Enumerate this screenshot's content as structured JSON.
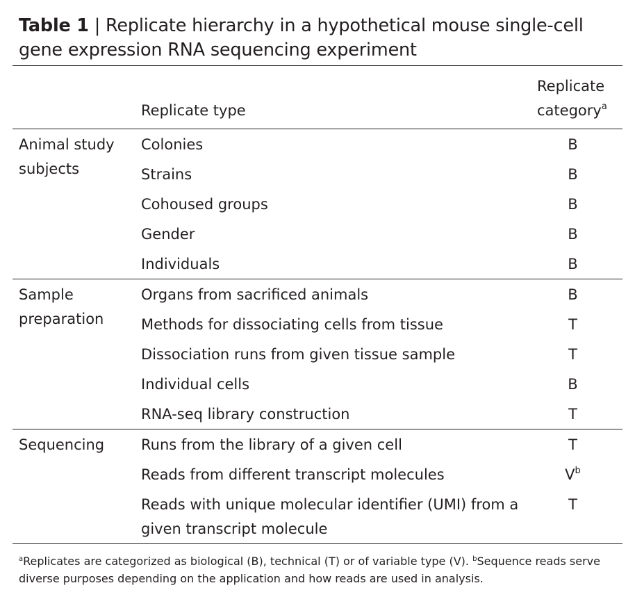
{
  "table": {
    "label": "Table 1",
    "separator": "|",
    "caption": "Replicate hierarchy in a hypothetical mouse single-cell gene expression RNA sequencing experiment",
    "headers": {
      "group": "",
      "type": "Replicate type",
      "category_line1": "Replicate",
      "category_line2": "category",
      "category_note": "a"
    },
    "groups": [
      {
        "name": "Animal study subjects",
        "rows": [
          {
            "type": "Colonies",
            "category": "B",
            "note": ""
          },
          {
            "type": "Strains",
            "category": "B",
            "note": ""
          },
          {
            "type": "Cohoused groups",
            "category": "B",
            "note": ""
          },
          {
            "type": "Gender",
            "category": "B",
            "note": ""
          },
          {
            "type": "Individuals",
            "category": "B",
            "note": ""
          }
        ]
      },
      {
        "name": "Sample preparation",
        "rows": [
          {
            "type": "Organs from sacrificed animals",
            "category": "B",
            "note": ""
          },
          {
            "type": "Methods for dissociating cells from tissue",
            "category": "T",
            "note": ""
          },
          {
            "type": "Dissociation runs from given tissue sample",
            "category": "T",
            "note": ""
          },
          {
            "type": "Individual cells",
            "category": "B",
            "note": ""
          },
          {
            "type": "RNA-seq library construction",
            "category": "T",
            "note": ""
          }
        ]
      },
      {
        "name": "Sequencing",
        "rows": [
          {
            "type": "Runs from the library of a given cell",
            "category": "T",
            "note": ""
          },
          {
            "type": "Reads from different transcript molecules",
            "category": "V",
            "note": "b"
          },
          {
            "type": "Reads with unique molecular identifier (UMI) from a given transcript molecule",
            "category": "T",
            "note": ""
          }
        ]
      }
    ],
    "footnotes": {
      "a_mark": "a",
      "a_text": "Replicates are categorized as biological (B), technical (T) or of variable type (V).",
      "b_mark": "b",
      "b_text": "Sequence reads serve diverse purposes depending on the application and how reads are used in analysis."
    }
  }
}
